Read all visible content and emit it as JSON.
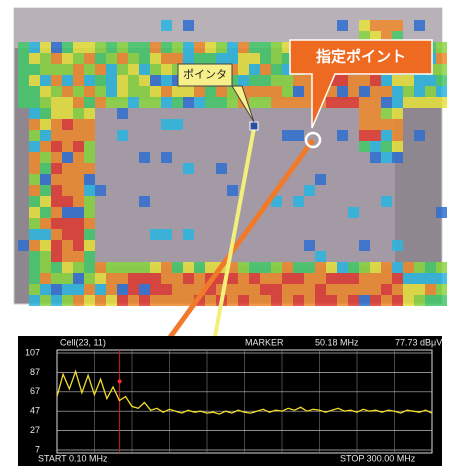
{
  "photo": {
    "callout": "指定ポイント",
    "pointer_label": "ポインタ"
  },
  "chart_data": {
    "type": "line",
    "cell_label": "Cell(23, 11)",
    "marker_title": "MARKER",
    "marker": {
      "value": 50.18,
      "label": "50.18 MHz"
    },
    "level": {
      "value": 77.73,
      "label": "77.73 dBμV"
    },
    "start_label": "START 0.10 MHz",
    "stop_label": "STOP 300.00 MHz",
    "x": [
      0.1,
      5,
      10,
      15,
      20,
      25,
      30,
      35,
      40,
      45,
      50,
      55,
      60,
      65,
      70,
      75,
      80,
      85,
      90,
      95,
      100,
      105,
      110,
      115,
      120,
      125,
      130,
      135,
      140,
      145,
      150,
      155,
      160,
      165,
      170,
      175,
      180,
      185,
      190,
      195,
      200,
      205,
      210,
      215,
      220,
      225,
      230,
      235,
      240,
      245,
      250,
      255,
      260,
      265,
      270,
      275,
      280,
      285,
      290,
      295,
      300
    ],
    "series": [
      {
        "color": "#f2dc2a",
        "values": [
          62,
          85,
          70,
          88,
          66,
          84,
          64,
          80,
          60,
          72,
          58,
          62,
          52,
          50,
          56,
          48,
          50,
          46,
          49,
          47,
          45,
          48,
          46,
          47,
          45,
          46,
          44,
          47,
          45,
          48,
          46,
          45,
          47,
          49,
          46,
          48,
          47,
          50,
          48,
          51,
          47,
          49,
          48,
          46,
          48,
          50,
          47,
          48,
          46,
          49,
          47,
          48,
          46,
          48,
          47,
          45,
          48,
          47,
          46,
          48,
          45
        ]
      }
    ],
    "xlim": [
      0.1,
      300
    ],
    "ylim": [
      7,
      107
    ],
    "yticks": [
      107,
      87,
      67,
      47,
      27,
      7
    ],
    "grid": true
  }
}
